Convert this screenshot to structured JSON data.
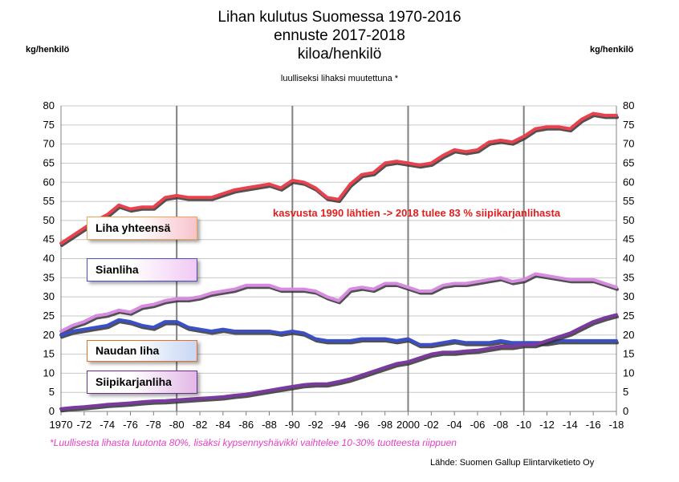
{
  "header": {
    "title_lines": [
      "Lihan kulutus Suomessa 1970-2016",
      "ennuste 2017-2018",
      "kiloa/henkilö"
    ],
    "unit_left": "kg/henkilö",
    "unit_right": "kg/henkilö",
    "subtitle": "luulliseksi lihaksi muutettuna *"
  },
  "annotation": "kasvusta 1990 lähtien -> 2018 tulee 83 % siipikarjanlihasta",
  "footnote": "*Luullisesta lihasta luutonta 80%, lisäksi kypsennyshävikki vaihtelee 10-30% tuotteesta riippuen",
  "source": "Lähde: Suomen Gallup Elintarviketieto Oy",
  "series_labels": {
    "total": "Liha yhteensä",
    "pork": "Sianliha",
    "beef": "Naudan liha",
    "poultry": "Siipikarjanliha"
  },
  "colors": {
    "total": "#e8424f",
    "pork": "#d68be0",
    "beef": "#3b50c8",
    "poultry": "#7a3aa0",
    "note": "#e01f1f",
    "footnote": "#e43fc6"
  },
  "chart_data": {
    "type": "line",
    "title": "Lihan kulutus Suomessa 1970-2016",
    "ylabel": "kg/henkilö",
    "ylim": [
      0,
      80
    ],
    "y_ticks": [
      0,
      5,
      10,
      15,
      20,
      25,
      30,
      35,
      40,
      45,
      50,
      55,
      60,
      65,
      70,
      75,
      80
    ],
    "x_range": [
      1970,
      2018
    ],
    "x_tick_labels": [
      "1970",
      "-72",
      "-74",
      "-76",
      "-78",
      "-80",
      "-82",
      "-84",
      "-86",
      "-88",
      "-90",
      "-92",
      "-94",
      "-96",
      "-98",
      "2000",
      "-02",
      "-04",
      "-06",
      "-08",
      "-10",
      "-12",
      "-14",
      "-16",
      "-18"
    ],
    "x_tick_years": [
      1970,
      1972,
      1974,
      1976,
      1978,
      1980,
      1982,
      1984,
      1986,
      1988,
      1990,
      1992,
      1994,
      1996,
      1998,
      2000,
      2002,
      2004,
      2006,
      2008,
      2010,
      2012,
      2014,
      2016,
      2018
    ],
    "vertical_gridlines_at": [
      1980,
      1990,
      2000,
      2010
    ],
    "grid": true,
    "x": [
      1970,
      1971,
      1972,
      1973,
      1974,
      1975,
      1976,
      1977,
      1978,
      1979,
      1980,
      1981,
      1982,
      1983,
      1984,
      1985,
      1986,
      1987,
      1988,
      1989,
      1990,
      1991,
      1992,
      1993,
      1994,
      1995,
      1996,
      1997,
      1998,
      1999,
      2000,
      2001,
      2002,
      2003,
      2004,
      2005,
      2006,
      2007,
      2008,
      2009,
      2010,
      2011,
      2012,
      2013,
      2014,
      2015,
      2016,
      2017,
      2018
    ],
    "series": [
      {
        "name": "Liha yhteensä",
        "key": "total",
        "values": [
          44,
          46,
          48,
          50,
          51.5,
          54,
          53,
          53.5,
          53.5,
          56,
          56.5,
          56,
          56,
          56,
          57,
          58,
          58.5,
          59,
          59.5,
          58.5,
          60.5,
          60,
          58.5,
          56,
          55.5,
          59.5,
          62,
          62.5,
          65,
          65.5,
          65,
          64.5,
          65,
          67,
          68.5,
          68,
          68.5,
          70.5,
          71,
          70.5,
          72,
          74,
          74.5,
          74.5,
          74,
          76.5,
          78,
          77.5,
          77.5
        ]
      },
      {
        "name": "Sianliha",
        "key": "pork",
        "values": [
          21,
          22.5,
          23.5,
          25,
          25.5,
          26.5,
          26,
          27.5,
          28,
          29,
          29.5,
          29.5,
          30,
          31,
          31.5,
          32,
          33,
          33,
          33,
          32,
          32,
          32,
          31.5,
          30,
          29,
          32,
          32.5,
          32,
          33.5,
          33.5,
          32.5,
          31.5,
          31.5,
          33,
          33.5,
          33.5,
          34,
          34.5,
          35,
          34,
          34.5,
          36,
          35.5,
          35,
          34.5,
          34.5,
          34.5,
          33.5,
          32.5
        ]
      },
      {
        "name": "Naudan liha",
        "key": "beef",
        "values": [
          20,
          21,
          21.5,
          22,
          22.5,
          24,
          23.5,
          22.5,
          22,
          23.5,
          23.5,
          22,
          21.5,
          21,
          21.5,
          21,
          21,
          21,
          21,
          20.5,
          21,
          20.5,
          19,
          18.5,
          18.5,
          18.5,
          19,
          19,
          19,
          18.5,
          19,
          17.5,
          17.5,
          18,
          18.5,
          18,
          18,
          18,
          18.5,
          18,
          18,
          18,
          18,
          18.5,
          18.5,
          18.5,
          18.5,
          18.5,
          18.5
        ]
      },
      {
        "name": "Siipikarjanliha",
        "key": "poultry",
        "values": [
          0.7,
          1,
          1.2,
          1.5,
          1.8,
          2,
          2.2,
          2.5,
          2.7,
          2.8,
          3,
          3.2,
          3.4,
          3.6,
          3.8,
          4.2,
          4.5,
          5,
          5.5,
          6,
          6.5,
          7,
          7.2,
          7.2,
          7.8,
          8.5,
          9.5,
          10.5,
          11.5,
          12.5,
          13,
          14,
          15,
          15.5,
          15.5,
          15.8,
          16,
          16.5,
          17,
          17,
          17.5,
          17.5,
          18.5,
          19.5,
          20.5,
          22,
          23.5,
          24.5,
          25.3
        ]
      }
    ]
  }
}
